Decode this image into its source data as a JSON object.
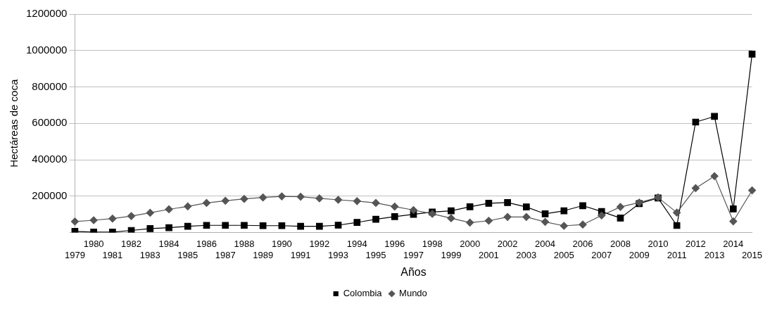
{
  "chart_data": {
    "type": "line",
    "xlabel": "Años",
    "ylabel": "Hectáreas de coca",
    "categories": [
      "1979",
      "1980",
      "1981",
      "1982",
      "1983",
      "1984",
      "1985",
      "1986",
      "1987",
      "1988",
      "1989",
      "1990",
      "1991",
      "1992",
      "1993",
      "1994",
      "1995",
      "1996",
      "1997",
      "1998",
      "1999",
      "2000",
      "2001",
      "2002",
      "2003",
      "2004",
      "2005",
      "2006",
      "2007",
      "2008",
      "2009",
      "2010",
      "2011",
      "2012",
      "2013",
      "2014",
      "2015"
    ],
    "series": [
      {
        "name": "Colombia",
        "color": "#000000",
        "marker": "square",
        "values": [
          7000,
          3000,
          3000,
          12000,
          22000,
          27000,
          35000,
          40000,
          40000,
          40000,
          38000,
          38000,
          35000,
          35000,
          41000,
          56000,
          73000,
          88000,
          100000,
          113000,
          120000,
          142000,
          161000,
          165000,
          141000,
          103000,
          120000,
          148000,
          116000,
          80000,
          159000,
          190000,
          39000,
          607000,
          638000,
          130000,
          980000
        ]
      },
      {
        "name": "Mundo",
        "color": "#555555",
        "marker": "diamond",
        "values": [
          61000,
          68000,
          77000,
          91000,
          109000,
          128000,
          144000,
          163000,
          175000,
          185000,
          193000,
          199000,
          197000,
          188000,
          180000,
          173000,
          163000,
          143000,
          124000,
          103000,
          79000,
          55000,
          65000,
          86000,
          86000,
          59000,
          37000,
          44000,
          94000,
          141000,
          165000,
          193000,
          110000,
          244000,
          310000,
          62000,
          232000
        ]
      }
    ],
    "ylim": [
      0,
      1200000
    ],
    "yticks": [
      {
        "value": 0,
        "label": null
      },
      200000,
      400000,
      600000,
      800000,
      1000000,
      1200000
    ],
    "grid": "y",
    "legend": "bottom"
  }
}
